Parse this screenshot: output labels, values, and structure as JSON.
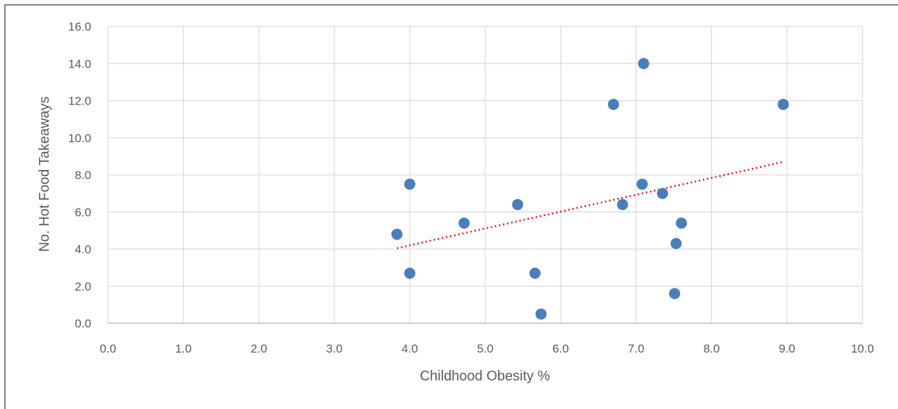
{
  "chart_data": {
    "type": "scatter",
    "title": "",
    "xlabel": "Childhood Obesity %",
    "ylabel": "No. Hot Food Takeaways",
    "xlim": [
      0,
      10
    ],
    "ylim": [
      0,
      16
    ],
    "x_ticks": [
      "0.0",
      "1.0",
      "2.0",
      "3.0",
      "4.0",
      "5.0",
      "6.0",
      "7.0",
      "8.0",
      "9.0",
      "10.0"
    ],
    "y_ticks": [
      "0.0",
      "2.0",
      "4.0",
      "6.0",
      "8.0",
      "10.0",
      "12.0",
      "14.0",
      "16.0"
    ],
    "grid": true,
    "legend": "none",
    "series": [
      {
        "color": "#4a7ebb",
        "points": [
          {
            "x": 3.83,
            "y": 4.8
          },
          {
            "x": 4.0,
            "y": 7.5
          },
          {
            "x": 4.0,
            "y": 2.7
          },
          {
            "x": 4.72,
            "y": 5.4
          },
          {
            "x": 5.43,
            "y": 6.4
          },
          {
            "x": 5.66,
            "y": 2.7
          },
          {
            "x": 5.74,
            "y": 0.5
          },
          {
            "x": 6.7,
            "y": 11.8
          },
          {
            "x": 6.82,
            "y": 6.4
          },
          {
            "x": 7.08,
            "y": 7.5
          },
          {
            "x": 7.1,
            "y": 14.0
          },
          {
            "x": 7.35,
            "y": 7.0
          },
          {
            "x": 7.51,
            "y": 1.6
          },
          {
            "x": 7.53,
            "y": 4.3
          },
          {
            "x": 7.6,
            "y": 5.4
          },
          {
            "x": 8.95,
            "y": 11.8
          }
        ]
      }
    ],
    "trendline": {
      "style": "dotted",
      "color": "#ff0000",
      "from": {
        "x": 3.83,
        "y": 4.05
      },
      "to": {
        "x": 8.95,
        "y": 8.7
      }
    }
  }
}
